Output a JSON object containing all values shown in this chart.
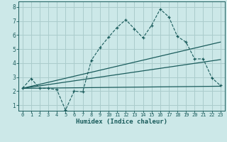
{
  "xlabel": "Humidex (Indice chaleur)",
  "bg_color": "#cce8e8",
  "grid_color": "#aacccc",
  "line_color": "#1a5c5c",
  "xlim": [
    -0.5,
    23.5
  ],
  "ylim": [
    0.6,
    8.4
  ],
  "xticks": [
    0,
    1,
    2,
    3,
    4,
    5,
    6,
    7,
    8,
    9,
    10,
    11,
    12,
    13,
    14,
    15,
    16,
    17,
    18,
    19,
    20,
    21,
    22,
    23
  ],
  "yticks": [
    1,
    2,
    3,
    4,
    5,
    6,
    7,
    8
  ],
  "line1_x": [
    0,
    1,
    2,
    3,
    4,
    5,
    6,
    7,
    8,
    9,
    10,
    11,
    12,
    13,
    14,
    15,
    16,
    17,
    18,
    19,
    20,
    21,
    22,
    23
  ],
  "line1_y": [
    2.2,
    2.9,
    2.2,
    2.2,
    2.1,
    0.65,
    2.0,
    1.95,
    4.2,
    5.1,
    5.85,
    6.55,
    7.1,
    6.45,
    5.8,
    6.7,
    7.85,
    7.3,
    5.9,
    5.5,
    4.3,
    4.3,
    2.95,
    2.4
  ],
  "line2_x": [
    0,
    23
  ],
  "line2_y": [
    2.2,
    2.35
  ],
  "line3_x": [
    0,
    23
  ],
  "line3_y": [
    2.2,
    4.25
  ],
  "line4_x": [
    0,
    23
  ],
  "line4_y": [
    2.2,
    5.5
  ]
}
